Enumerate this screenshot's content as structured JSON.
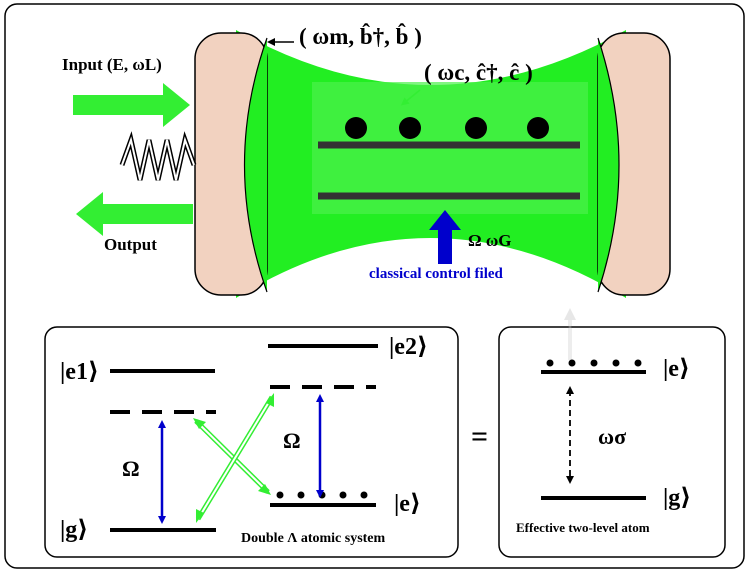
{
  "cavity": {
    "input_label": "Input (E, ωL)",
    "output_label": "Output",
    "mirror_mode_label": "( ωm, b̂†, b̂ )",
    "cavity_mode_label": "( ωc, ĉ†, ĉ )",
    "control_symbols": "Ω  ωG",
    "control_label": "classical control filed"
  },
  "double_lambda": {
    "e1_label": "|e1⟩",
    "e2_label": "|e2⟩",
    "e_label": "|e⟩",
    "g_label": "|g⟩",
    "omega_left": "Ω",
    "omega_right": "Ω",
    "caption": "Double Λ  atomic system"
  },
  "equals_sign": "=",
  "two_level": {
    "e_label": "|e⟩",
    "g_label": "|g⟩",
    "transition_label": "ωσ",
    "caption": "Effective two-level atom"
  },
  "colors": {
    "laser_green": "#33ee33",
    "cavity_green": "#22ee22",
    "mirror_fill": "#f2d2c0",
    "control_blue": "#0000cc"
  }
}
